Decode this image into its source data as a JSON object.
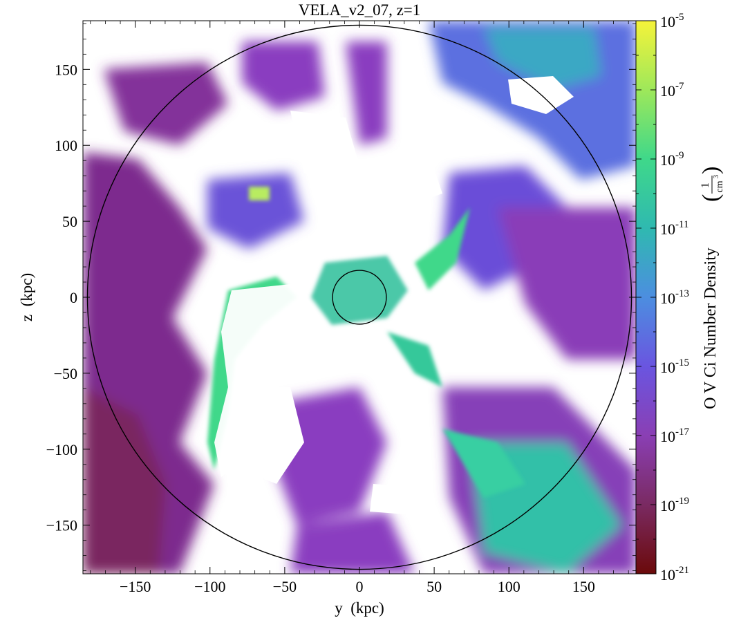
{
  "chart_data": {
    "type": "heatmap",
    "title": "VELA_v2_07, z=1",
    "xlabel": "y  (kpc)",
    "ylabel": "z  (kpc)",
    "xlim": [
      -185,
      185
    ],
    "ylim": [
      -182,
      182
    ],
    "xticks": [
      -150,
      -100,
      -50,
      0,
      50,
      100,
      150
    ],
    "yticks": [
      -150,
      -100,
      -50,
      0,
      50,
      100,
      150
    ],
    "xtick_labels": [
      "−150",
      "−100",
      "−50",
      "0",
      "50",
      "100",
      "150"
    ],
    "ytick_labels": [
      "−150",
      "−100",
      "−50",
      "0",
      "50",
      "100",
      "150"
    ],
    "circles": [
      {
        "center": [
          0,
          0
        ],
        "radius": 182
      },
      {
        "center": [
          0,
          0
        ],
        "radius": 18
      }
    ],
    "colorbar": {
      "label": "O V Ci Number Density",
      "unit_numerator": "1",
      "unit_denominator": "cm",
      "unit_exponent": "3",
      "scale": "log",
      "range_exponents": [
        -21,
        -5
      ],
      "tick_exponents": [
        -21,
        -19,
        -17,
        -15,
        -13,
        -11,
        -9,
        -7,
        -5
      ],
      "tick_labels": [
        {
          "base": "10",
          "exp": "-21"
        },
        {
          "base": "10",
          "exp": "-19"
        },
        {
          "base": "10",
          "exp": "-17"
        },
        {
          "base": "10",
          "exp": "-15"
        },
        {
          "base": "10",
          "exp": "-13"
        },
        {
          "base": "10",
          "exp": "-11"
        },
        {
          "base": "10",
          "exp": "-9"
        },
        {
          "base": "10",
          "exp": "-7"
        },
        {
          "base": "10",
          "exp": "-5"
        }
      ],
      "colormap": [
        "#6b0a0a",
        "#7a2a62",
        "#8a3fb4",
        "#6a55e0",
        "#4c8ee0",
        "#2fb9b0",
        "#3fd88a",
        "#9ee85a",
        "#f5f33a"
      ]
    },
    "grid": false
  }
}
